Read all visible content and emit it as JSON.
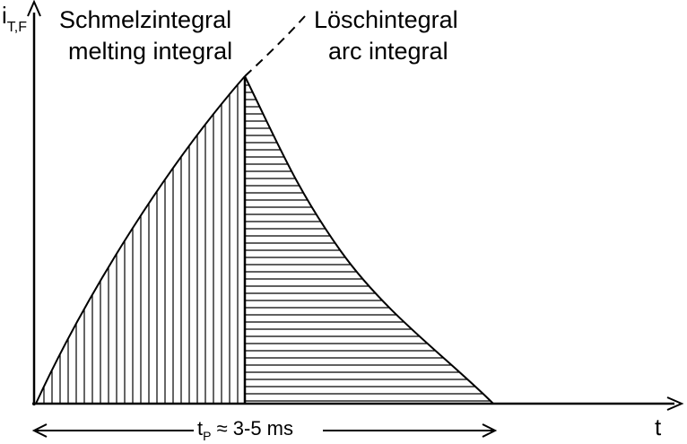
{
  "diagram": {
    "y_axis_label": {
      "base": "i",
      "subscript": "T,F"
    },
    "x_axis_label": "t",
    "melting_region": {
      "label_de": "Schmelzintegral",
      "label_en": "melting integral",
      "hatch": "vertical"
    },
    "arc_region": {
      "label_de": "Löschintegral",
      "label_en": "arc integral",
      "hatch": "horizontal"
    },
    "duration": {
      "prefix": "t",
      "subscript": "P",
      "suffix": " ≈ 3-5 ms"
    },
    "colors": {
      "line": "#000000",
      "background": "#ffffff"
    }
  }
}
